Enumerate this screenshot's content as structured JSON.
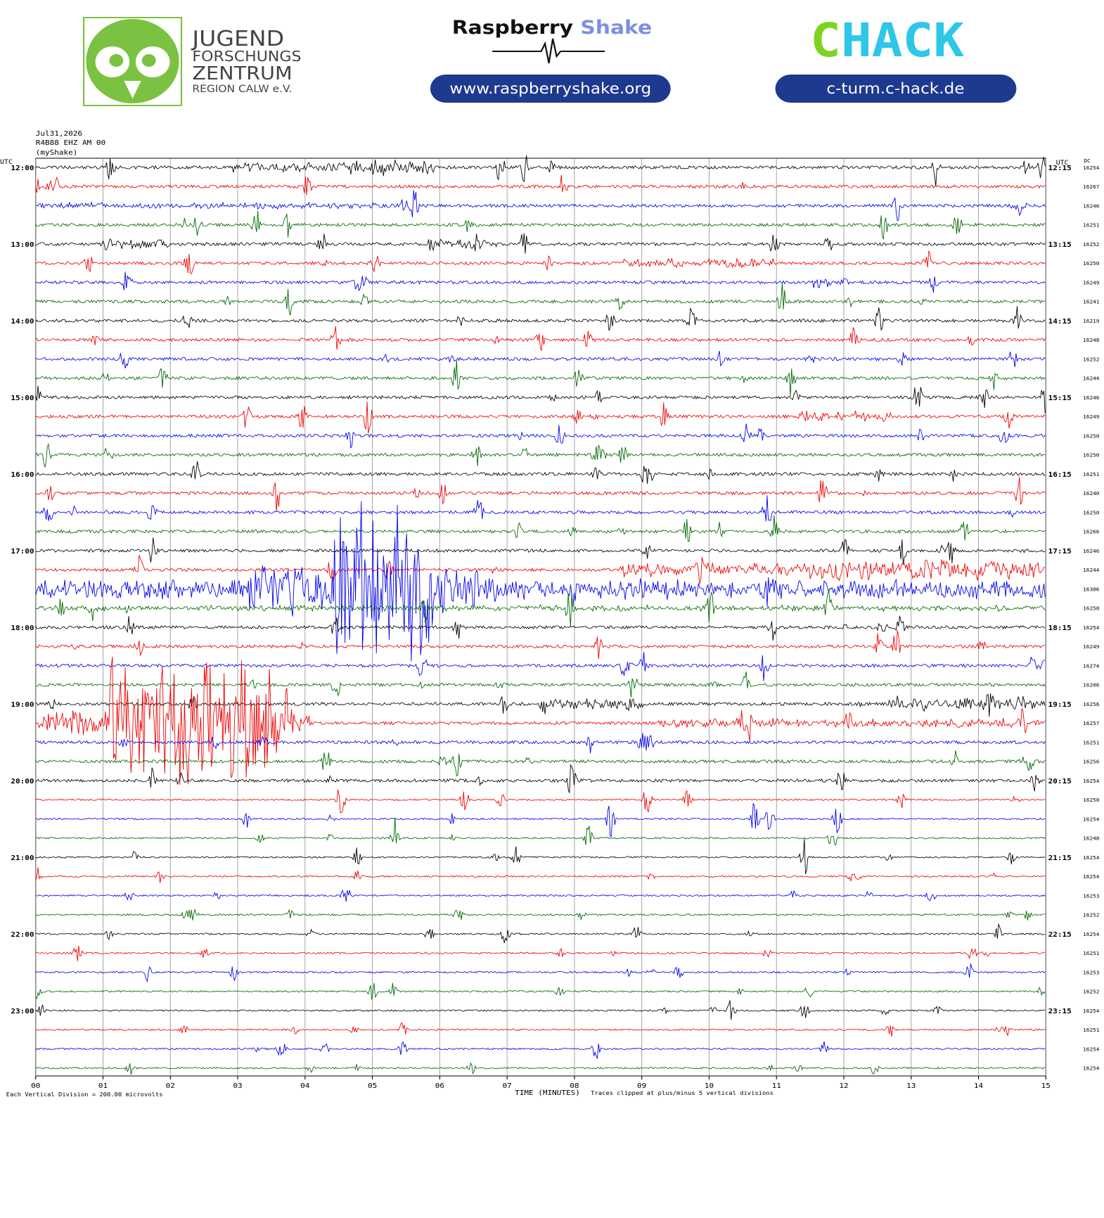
{
  "header": {
    "logo_lines": [
      "JUGEND",
      "FORSCHUNGS",
      "ZENTRUM",
      "REGION CALW e.V."
    ],
    "raspberry": "Raspberry",
    "shake": "Shake",
    "raspberry_url": "www.raspberryshake.org",
    "chack_c": "C",
    "chack_hack": "HACK",
    "chack_url": "c-turm.c-hack.de"
  },
  "plot": {
    "date": "Jul31,2026",
    "station": "R4B88 EHZ AM 00",
    "source": "(myShake)",
    "utc_left": "UTC",
    "utc_right": "UTC",
    "dc_header": "DC",
    "left_times": [
      "12:00",
      "13:00",
      "14:00",
      "15:00",
      "16:00",
      "17:00",
      "18:00",
      "19:00",
      "20:00",
      "21:00",
      "22:00",
      "23:00"
    ],
    "right_times": [
      "12:15",
      "13:15",
      "14:15",
      "15:15",
      "16:15",
      "17:15",
      "18:15",
      "19:15",
      "20:15",
      "21:15",
      "22:15",
      "23:15"
    ],
    "dc_values": [
      16254,
      16267,
      16246,
      16251,
      16252,
      16250,
      16249,
      16241,
      16219,
      16248,
      16252,
      16244,
      16246,
      16249,
      16250,
      16250,
      16251,
      16240,
      16250,
      16266,
      16246,
      16244,
      16306,
      16250,
      16254,
      16249,
      16274,
      16206,
      16256,
      16257,
      16251,
      16256,
      16254,
      16250,
      16254,
      16248,
      16254,
      16254,
      16253,
      16252,
      16254,
      16251,
      16253,
      16252,
      16254,
      16251,
      16254,
      16254
    ],
    "minutes": [
      "00",
      "01",
      "02",
      "03",
      "04",
      "05",
      "06",
      "07",
      "08",
      "09",
      "10",
      "11",
      "12",
      "13",
      "14",
      "15"
    ],
    "xlabel": "TIME (MINUTES)",
    "scale_note": "Each Vertical Division =  200.00 microvolts",
    "clip_note": "Traces clipped at plus/minus 5 vertical divisions"
  }
}
